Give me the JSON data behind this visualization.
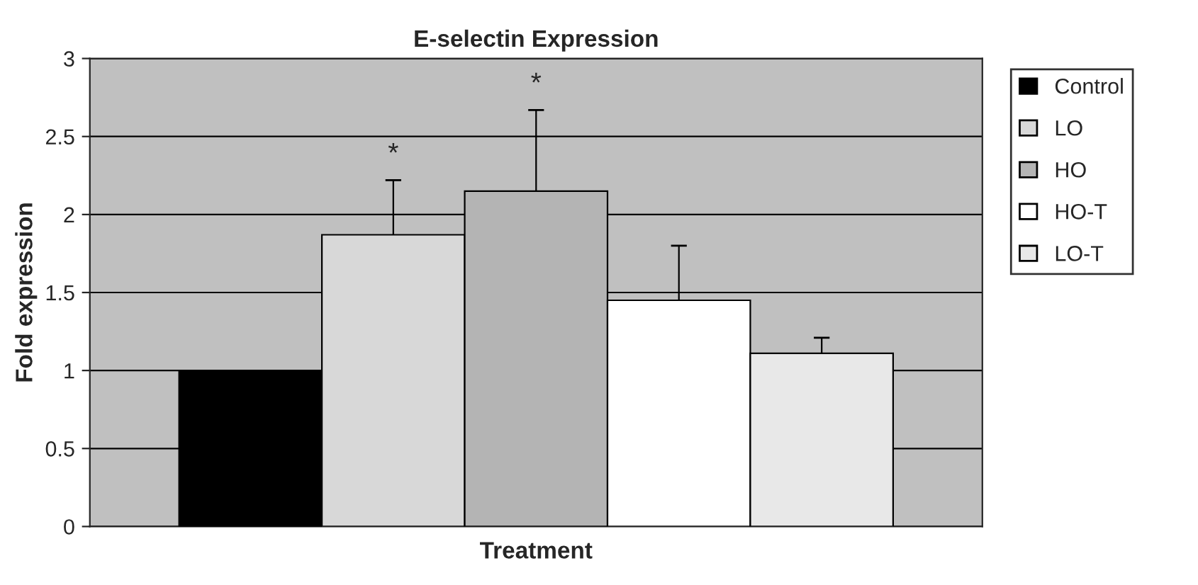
{
  "chart_data": {
    "type": "bar",
    "title": "E-selectin Expression",
    "xlabel": "Treatment",
    "ylabel": "Fold expression",
    "categories": [
      null
    ],
    "series": [
      {
        "name": "Control",
        "color": "#000000",
        "values": [
          1.0
        ],
        "errors": [
          null
        ]
      },
      {
        "name": "LO",
        "color": "#d8d8d8",
        "values": [
          1.87
        ],
        "errors": [
          0.35
        ]
      },
      {
        "name": "HO",
        "color": "#b4b4b4",
        "values": [
          2.15
        ],
        "errors": [
          0.52
        ]
      },
      {
        "name": "HO-T",
        "color": "#ffffff",
        "values": [
          1.45
        ],
        "errors": [
          0.35
        ]
      },
      {
        "name": "LO-T",
        "color": "#e8e8e8",
        "values": [
          1.11
        ],
        "errors": [
          0.1
        ]
      }
    ],
    "ylim": [
      0,
      3
    ],
    "yticks": [
      0,
      0.5,
      1,
      1.5,
      2,
      2.5,
      3
    ],
    "grid": "y",
    "legend": "right",
    "annotations": [
      "*",
      "*"
    ]
  }
}
